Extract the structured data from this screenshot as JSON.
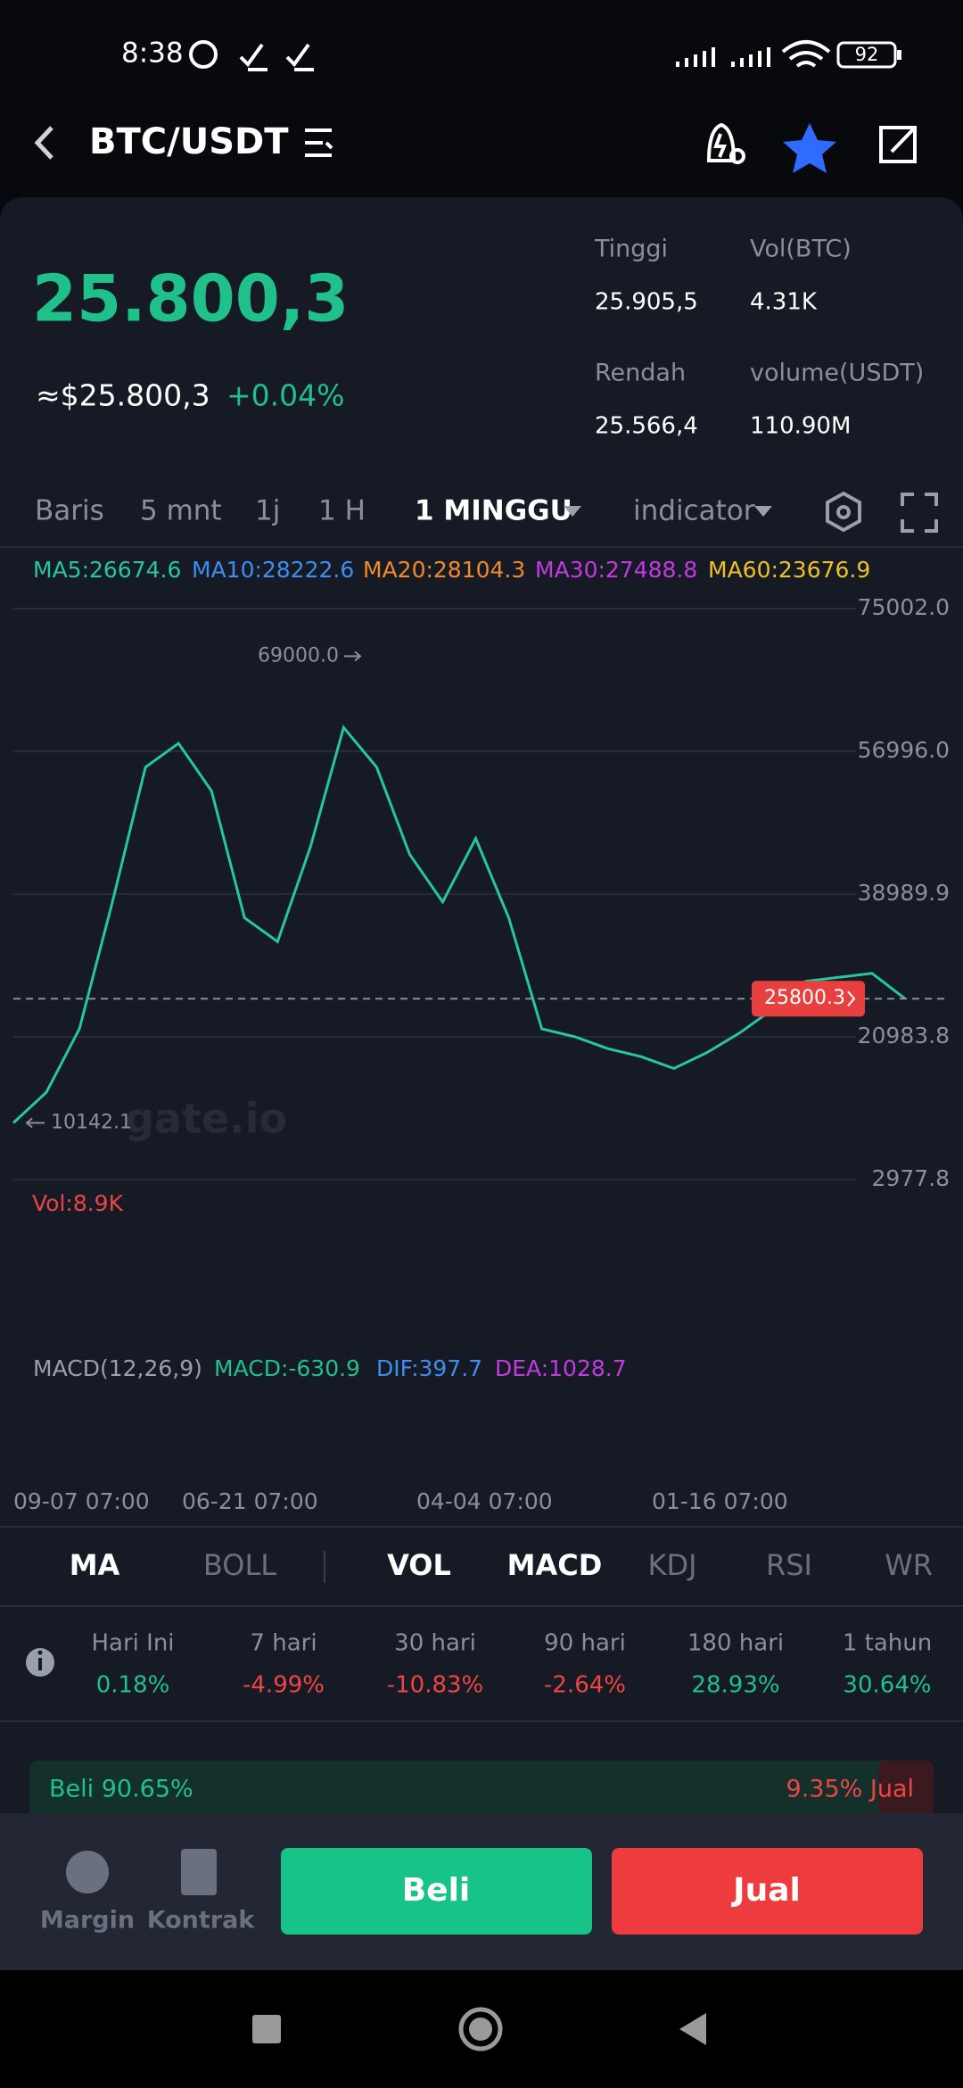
{
  "status_bar": {
    "time": "8:38",
    "battery": "92"
  },
  "header": {
    "pair": "BTC/USDT"
  },
  "ticker": {
    "last": "25.800,3",
    "usd": "≈$25.800,3",
    "change": "+0.04%",
    "stats": [
      {
        "label": "Tinggi",
        "value": "25.905,5"
      },
      {
        "label": "Vol(BTC)",
        "value": "4.31K"
      },
      {
        "label": "Rendah",
        "value": "25.566,4"
      },
      {
        "label": "volume(USDT)",
        "value": "110.90M"
      }
    ]
  },
  "intervals": [
    "Baris",
    "5 mnt",
    "1j",
    "1 H",
    "1 MINGGU",
    "indicator"
  ],
  "kline": {
    "ma": [
      {
        "text": "MA5:26674.6",
        "color": "#26c6a0"
      },
      {
        "text": "MA10:28222.6",
        "color": "#3d8ef0"
      },
      {
        "text": "MA20:28104.3",
        "color": "#f08a2a"
      },
      {
        "text": "MA30:27488.8",
        "color": "#c23be0"
      },
      {
        "text": "MA60:23676.9",
        "color": "#f0c02a"
      }
    ],
    "yticks": [
      {
        "value": 75002,
        "label": "75002.0"
      },
      {
        "value": 56996,
        "label": "56996.0"
      },
      38989.9,
      20983.8,
      2977.8
    ],
    "high_marker": {
      "value": 69000,
      "label": "69000.0"
    },
    "low_marker": 10142.1,
    "last_price": 25800.3,
    "watermark": "gate.io",
    "closes": [
      10142,
      14000,
      22000,
      38000,
      55000,
      58000,
      52000,
      36000,
      33000,
      45000,
      60000,
      55000,
      44000,
      38000,
      46000,
      36000,
      22000,
      21000,
      19500,
      18500,
      17000,
      19000,
      21500,
      24500,
      28000,
      28500,
      29000,
      25800
    ],
    "volume_label": "Vol:8.9K",
    "macd": [
      {
        "text": "MACD(12,26,9)",
        "color": "#9aa0ab"
      },
      {
        "text": "MACD:-630.9",
        "color": "#20c08a"
      },
      {
        "text": "DIF:397.7",
        "color": "#3d8ef0"
      },
      {
        "text": "DEA:1028.7",
        "color": "#c23be0"
      }
    ],
    "dates": [
      "09-07 07:00",
      "06-21 07:00",
      "04-04 07:00",
      "01-16 07:00"
    ]
  },
  "indicator_tabs": [
    "MA",
    "BOLL",
    "VOL",
    "MACD",
    "KDJ",
    "RSI",
    "WR"
  ],
  "performance": [
    {
      "period": "Hari Ini",
      "change": "0.18%"
    },
    {
      "period": "7 hari",
      "change": "-4.99%"
    },
    {
      "period": "30 hari",
      "change": "-10.83%"
    },
    {
      "period": "90 hari",
      "change": "-2.64%"
    },
    {
      "period": "180 hari",
      "change": "28.93%"
    },
    {
      "period": "1 tahun",
      "change": "30.64%"
    }
  ],
  "ratio": {
    "buy": "Beli 90.65%",
    "sell": "9.35% Jual"
  },
  "bottom": {
    "margin": "Margin",
    "contract": "Kontrak",
    "buy": "Beli",
    "sell": "Jual"
  }
}
